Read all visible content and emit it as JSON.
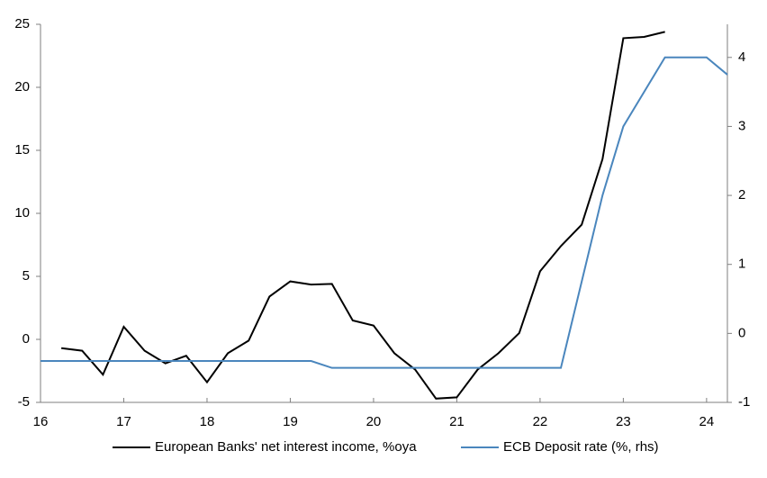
{
  "chart_data": {
    "type": "line",
    "xlim": [
      16,
      24.25
    ],
    "xticks": [
      16,
      17,
      18,
      19,
      20,
      21,
      22,
      23,
      24
    ],
    "ylim": [
      -5,
      25
    ],
    "yticks": [
      -5,
      0,
      5,
      10,
      15,
      20,
      25
    ],
    "y2lim": [
      -1,
      4.48
    ],
    "y2ticks": [
      -1,
      0,
      1,
      2,
      3,
      4
    ],
    "legend": "bottom",
    "series": [
      {
        "name": "European Banks' net interest income, %oya",
        "color": "#000000",
        "x": [
          16.25,
          16.5,
          16.75,
          17.0,
          17.25,
          17.5,
          17.75,
          18.0,
          18.25,
          18.5,
          18.75,
          19.0,
          19.25,
          19.5,
          19.75,
          20.0,
          20.25,
          20.5,
          20.75,
          21.0,
          21.25,
          21.5,
          21.75,
          22.0,
          22.25,
          22.5,
          22.75,
          23.0,
          23.25,
          23.5
        ],
        "values": [
          -0.7,
          -0.9,
          -2.8,
          1.0,
          -0.9,
          -1.9,
          -1.3,
          -3.4,
          -1.1,
          -0.1,
          3.4,
          4.6,
          4.35,
          4.4,
          1.5,
          1.1,
          -1.1,
          -2.4,
          -4.7,
          -4.6,
          -2.4,
          -1.1,
          0.5,
          5.4,
          7.4,
          9.1,
          14.3,
          23.9,
          24.0,
          24.4
        ]
      },
      {
        "name": "ECB Deposit rate (%, rhs)",
        "color": "#4a86bd",
        "axis": "y2",
        "x": [
          16.0,
          19.25,
          19.5,
          22.25,
          22.5,
          22.75,
          23.0,
          23.5,
          24.0,
          24.25
        ],
        "values": [
          -0.4,
          -0.4,
          -0.5,
          -0.5,
          0.75,
          2.0,
          3.0,
          4.0,
          4.0,
          3.75
        ]
      }
    ]
  }
}
